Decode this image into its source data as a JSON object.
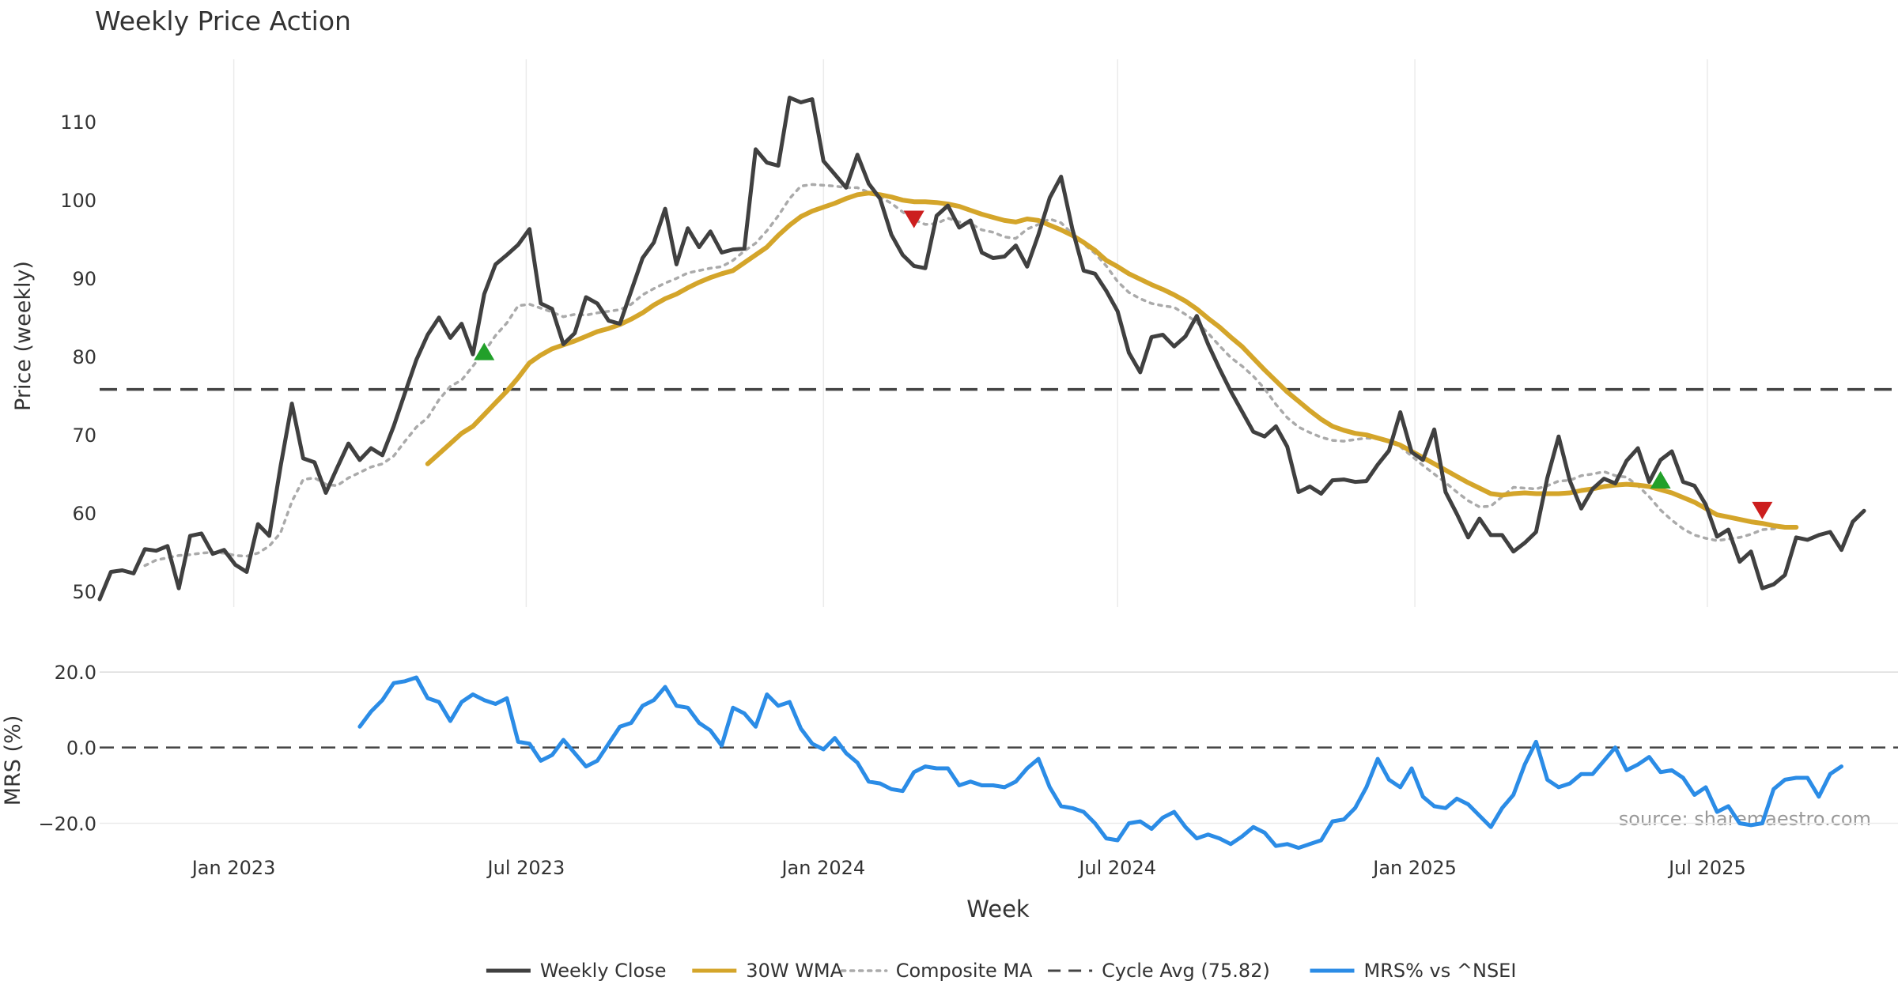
{
  "chart_data": [
    {
      "type": "line",
      "title": "Weekly Price Action",
      "ylabel": "Price (weekly)",
      "ylim": [
        48,
        118
      ],
      "yticks": [
        50,
        60,
        70,
        80,
        90,
        100,
        110
      ],
      "x_start": "2022-10-10",
      "x_end": "2025-10-27",
      "x_step_days": 7,
      "xticks": [
        {
          "date": "2023-01-01",
          "label": "Jan 2023"
        },
        {
          "date": "2023-07-01",
          "label": "Jul 2023"
        },
        {
          "date": "2024-01-01",
          "label": "Jan 2024"
        },
        {
          "date": "2024-07-01",
          "label": "Jul 2024"
        },
        {
          "date": "2025-01-01",
          "label": "Jan 2025"
        },
        {
          "date": "2025-07-01",
          "label": "Jul 2025"
        }
      ],
      "grid": true,
      "series": [
        {
          "name": "Weekly Close",
          "color": "#404040",
          "values": [
            49.0,
            52.5,
            52.7,
            52.3,
            55.4,
            55.2,
            55.8,
            50.4,
            57.1,
            57.4,
            54.8,
            55.3,
            53.4,
            52.5,
            58.6,
            57.1,
            66.0,
            74.0,
            67.0,
            66.5,
            62.6,
            65.8,
            68.9,
            66.8,
            68.3,
            67.4,
            71.1,
            75.4,
            79.6,
            82.8,
            85.0,
            82.4,
            84.2,
            80.3,
            88.0,
            91.8,
            93.0,
            94.3,
            96.3,
            86.8,
            86.1,
            81.6,
            83.0,
            87.6,
            86.8,
            84.6,
            84.2,
            88.4,
            92.6,
            94.6,
            98.9,
            91.8,
            96.4,
            94.0,
            96.0,
            93.3,
            93.7,
            93.8,
            106.5,
            104.8,
            104.4,
            113.1,
            112.5,
            112.9,
            105.0,
            103.3,
            101.6,
            105.8,
            102.1,
            100.2,
            95.6,
            93.0,
            91.6,
            91.3,
            98.0,
            99.3,
            96.5,
            97.4,
            93.3,
            92.6,
            92.8,
            94.2,
            91.5,
            95.6,
            100.3,
            103.0,
            96.3,
            91.0,
            90.6,
            88.4,
            85.8,
            80.5,
            78.0,
            82.5,
            82.8,
            81.3,
            82.6,
            85.2,
            81.6,
            78.5,
            75.6,
            73.0,
            70.4,
            69.8,
            71.1,
            68.5,
            62.7,
            63.4,
            62.5,
            64.2,
            64.3,
            64.0,
            64.1,
            66.2,
            68.0,
            72.9,
            67.8,
            66.8,
            70.7,
            62.7,
            59.9,
            56.9,
            59.3,
            57.2,
            57.2,
            55.1,
            56.2,
            57.6,
            64.5,
            69.8,
            64.1,
            60.6,
            63.1,
            64.4,
            63.8,
            66.7,
            68.3,
            64.0,
            66.8,
            67.9,
            64.0,
            63.5,
            61.1,
            57.0,
            57.9,
            53.8,
            55.1,
            50.4,
            50.9,
            52.1,
            56.9,
            56.6,
            57.2,
            57.6,
            55.3,
            58.9,
            60.3
          ]
        },
        {
          "name": "30W WMA",
          "color": "#d4a52a",
          "start_index": 29,
          "values": [
            66.3,
            67.6,
            68.9,
            70.2,
            71.1,
            72.6,
            74.1,
            75.6,
            77.3,
            79.2,
            80.2,
            81.0,
            81.5,
            82.0,
            82.6,
            83.2,
            83.6,
            84.1,
            84.8,
            85.6,
            86.6,
            87.4,
            88.0,
            88.8,
            89.5,
            90.1,
            90.6,
            91.0,
            92.0,
            93.0,
            94.0,
            95.5,
            96.8,
            97.9,
            98.6,
            99.1,
            99.6,
            100.2,
            100.7,
            100.9,
            100.7,
            100.4,
            100.0,
            99.8,
            99.8,
            99.7,
            99.5,
            99.2,
            98.7,
            98.2,
            97.8,
            97.4,
            97.2,
            97.6,
            97.4,
            96.8,
            96.2,
            95.5,
            94.6,
            93.6,
            92.3,
            91.5,
            90.6,
            89.9,
            89.2,
            88.6,
            87.9,
            87.1,
            86.1,
            84.9,
            83.8,
            82.5,
            81.3,
            79.8,
            78.3,
            76.9,
            75.5,
            74.3,
            73.1,
            72.0,
            71.1,
            70.6,
            70.2,
            70.0,
            69.6,
            69.2,
            68.7,
            67.9,
            67.1,
            66.3,
            65.5,
            64.7,
            63.9,
            63.2,
            62.5,
            62.3,
            62.5,
            62.6,
            62.5,
            62.5,
            62.5,
            62.6,
            62.9,
            63.1,
            63.4,
            63.6,
            63.7,
            63.6,
            63.4,
            63.0,
            62.6,
            62.0,
            61.4,
            60.6,
            59.8,
            59.5,
            59.2,
            58.9,
            58.7,
            58.4,
            58.2,
            58.2
          ]
        },
        {
          "name": "Composite MA",
          "color": "#aaaaaa",
          "start_index": 4,
          "values": [
            53.3,
            54.0,
            54.3,
            54.6,
            54.7,
            54.9,
            55.0,
            54.9,
            54.6,
            54.5,
            54.9,
            55.8,
            57.5,
            61.5,
            64.3,
            64.5,
            63.7,
            63.5,
            64.5,
            65.2,
            65.9,
            66.3,
            67.3,
            69.2,
            71.0,
            72.2,
            74.5,
            76.2,
            77.0,
            78.8,
            80.6,
            82.7,
            84.3,
            86.5,
            86.7,
            86.2,
            85.7,
            85.1,
            85.4,
            85.3,
            85.6,
            85.8,
            86.0,
            86.7,
            87.9,
            88.7,
            89.4,
            90.0,
            90.7,
            91.0,
            91.3,
            91.5,
            92.3,
            93.5,
            94.5,
            96.1,
            98.0,
            100.2,
            101.8,
            102.0,
            101.9,
            101.8,
            101.6,
            101.6,
            101.0,
            100.4,
            99.6,
            98.5,
            97.5,
            96.9,
            97.0,
            97.7,
            97.2,
            97.0,
            96.2,
            95.9,
            95.3,
            95.1,
            96.3,
            96.9,
            97.6,
            97.1,
            95.7,
            94.4,
            93.2,
            91.6,
            89.6,
            88.2,
            87.4,
            86.8,
            86.5,
            86.3,
            85.4,
            84.4,
            83.0,
            81.4,
            79.9,
            78.8,
            77.5,
            75.9,
            73.9,
            72.2,
            71.0,
            70.3,
            69.7,
            69.3,
            69.2,
            69.4,
            69.6,
            69.5,
            69.1,
            68.5,
            67.3,
            66.1,
            65.0,
            63.9,
            62.7,
            61.6,
            60.8,
            60.9,
            62.1,
            63.3,
            63.2,
            63.1,
            63.5,
            64.1,
            64.2,
            64.8,
            65.0,
            65.3,
            64.8,
            64.6,
            63.5,
            62.1,
            60.4,
            59.1,
            58.0,
            57.2,
            56.8,
            56.5,
            56.7,
            56.9,
            57.3,
            57.9,
            58.0,
            58.4
          ]
        },
        {
          "name": "Cycle Avg (75.82)",
          "color": "#444444",
          "constant": 75.82
        }
      ],
      "markers": [
        {
          "kind": "buy",
          "index": 34,
          "value": 80.6,
          "color": "#22a02a"
        },
        {
          "kind": "sell",
          "index": 72,
          "value": 97.6,
          "color": "#cc1e1e"
        },
        {
          "kind": "buy",
          "index": 138,
          "value": 64.2,
          "color": "#22a02a"
        },
        {
          "kind": "sell",
          "index": 147,
          "value": 60.4,
          "color": "#cc1e1e"
        }
      ]
    },
    {
      "type": "line",
      "xlabel": "Week",
      "ylabel": "MRS (%)",
      "ylim": [
        -27,
        21
      ],
      "yticks": [
        {
          "value": 20,
          "label": "20.0"
        },
        {
          "value": 0,
          "label": "0.0"
        },
        {
          "value": -20,
          "label": "−20.0"
        }
      ],
      "series": [
        {
          "name": "MRS% vs ^NSEI",
          "color": "#2b8ce6",
          "start_index": 23,
          "values": [
            5.5,
            9.5,
            12.5,
            17.0,
            17.5,
            18.5,
            13.0,
            12.0,
            7.0,
            12.0,
            14.0,
            12.5,
            11.5,
            13.0,
            1.5,
            1.0,
            -3.5,
            -2.0,
            2.0,
            -1.5,
            -5.0,
            -3.5,
            1.0,
            5.5,
            6.5,
            11.0,
            12.5,
            16.0,
            11.0,
            10.5,
            6.5,
            4.5,
            0.5,
            10.5,
            9.0,
            5.5,
            14.0,
            11.0,
            12.0,
            5.0,
            1.0,
            -0.5,
            2.5,
            -1.5,
            -4.0,
            -9.0,
            -9.5,
            -11.0,
            -11.5,
            -6.5,
            -5.0,
            -5.5,
            -5.5,
            -10.0,
            -9.0,
            -10.0,
            -10.0,
            -10.5,
            -9.0,
            -5.5,
            -3.0,
            -10.5,
            -15.5,
            -16.0,
            -17.0,
            -20.0,
            -24.0,
            -24.5,
            -20.0,
            -19.5,
            -21.5,
            -18.5,
            -17.0,
            -21.0,
            -24.0,
            -23.0,
            -24.0,
            -25.5,
            -23.5,
            -21.0,
            -22.5,
            -26.0,
            -25.5,
            -26.5,
            -25.5,
            -24.5,
            -19.5,
            -19.0,
            -16.0,
            -10.5,
            -3.0,
            -8.5,
            -10.5,
            -5.5,
            -13.0,
            -15.5,
            -16.0,
            -13.5,
            -15.0,
            -18.0,
            -21.0,
            -16.0,
            -12.5,
            -4.5,
            1.5,
            -8.5,
            -10.5,
            -9.5,
            -7.0,
            -7.0,
            -3.5,
            0.0,
            -6.0,
            -4.5,
            -2.5,
            -6.5,
            -6.0,
            -8.0,
            -12.5,
            -10.5,
            -17.0,
            -15.5,
            -20.0,
            -20.5,
            -20.0,
            -11.0,
            -8.5,
            -8.0,
            -8.0,
            -13.0,
            -7.0,
            -5.0
          ]
        },
        {
          "name": "zero-line",
          "color": "#444444",
          "constant": 0
        }
      ],
      "annotation": "source: sharemaestro.com"
    }
  ],
  "legend": [
    {
      "label": "Weekly Close",
      "style": "solid",
      "color": "#404040"
    },
    {
      "label": "30W WMA",
      "style": "solid",
      "color": "#d4a52a"
    },
    {
      "label": "Composite MA",
      "style": "dotted",
      "color": "#aaaaaa"
    },
    {
      "label": "Cycle Avg (75.82)",
      "style": "dashed",
      "color": "#444444"
    },
    {
      "label": "MRS% vs ^NSEI",
      "style": "solid",
      "color": "#2b8ce6"
    }
  ]
}
